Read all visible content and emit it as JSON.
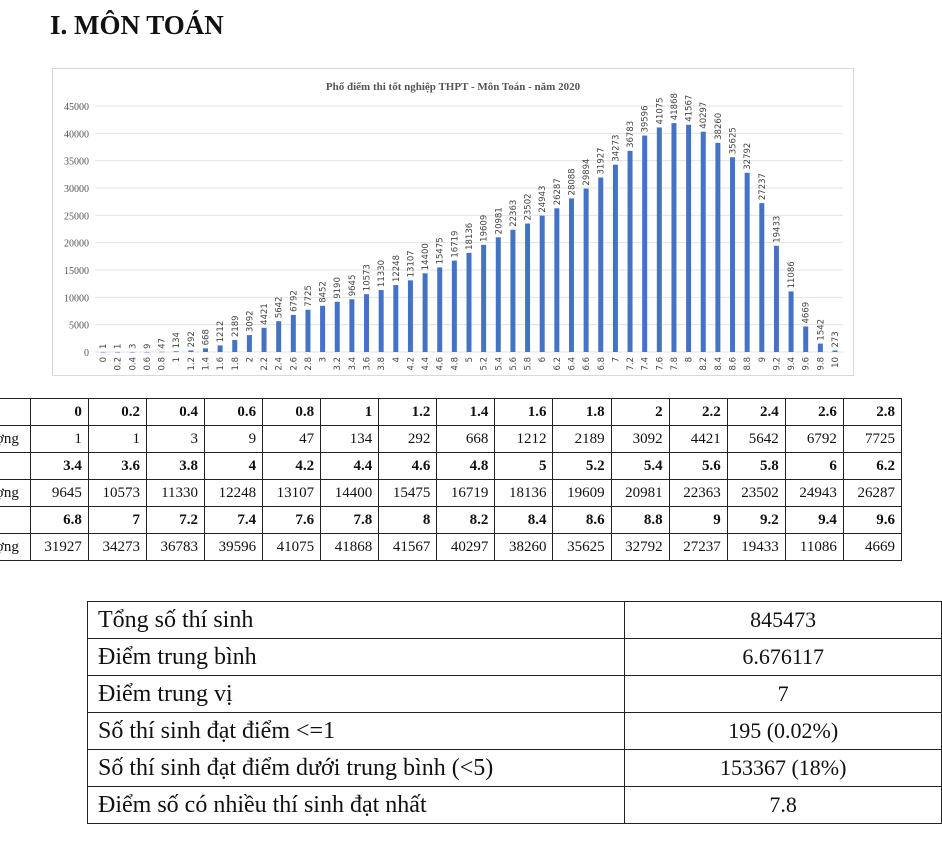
{
  "heading": "I. MÔN TOÁN",
  "chart_data": {
    "type": "bar",
    "title": "Phổ điểm thi tốt nghiệp THPT - Môn Toán - năm 2020",
    "xlabel": "",
    "ylabel": "",
    "ylim": [
      0,
      45000
    ],
    "yticks": [
      0,
      5000,
      10000,
      15000,
      20000,
      25000,
      30000,
      35000,
      40000,
      45000
    ],
    "grid": true,
    "bar_color": "#4472c4",
    "categories": [
      "0",
      "0.2",
      "0.4",
      "0.6",
      "0.8",
      "1",
      "1.2",
      "1.4",
      "1.6",
      "1.8",
      "2",
      "2.2",
      "2.4",
      "2.6",
      "2.8",
      "3",
      "3.2",
      "3.4",
      "3.6",
      "3.8",
      "4",
      "4.2",
      "4.4",
      "4.6",
      "4.8",
      "5",
      "5.2",
      "5.4",
      "5.6",
      "5.8",
      "6",
      "6.2",
      "6.4",
      "6.6",
      "6.8",
      "7",
      "7.2",
      "7.4",
      "7.6",
      "7.8",
      "8",
      "8.2",
      "8.4",
      "8.6",
      "8.8",
      "9",
      "9.2",
      "9.4",
      "9.6",
      "9.8",
      "10"
    ],
    "values": [
      1,
      1,
      3,
      9,
      47,
      134,
      292,
      668,
      1212,
      2189,
      3092,
      4421,
      5642,
      6792,
      7725,
      8452,
      9190,
      9645,
      10573,
      11330,
      12248,
      13107,
      14400,
      15475,
      16719,
      18136,
      19609,
      20981,
      22363,
      23502,
      24943,
      26287,
      28088,
      29894,
      31927,
      34273,
      36783,
      39596,
      41075,
      41868,
      41567,
      40297,
      38260,
      35625,
      32792,
      27237,
      19433,
      11086,
      4669,
      1542,
      273
    ]
  },
  "distribution_table": {
    "row_label": "Số lượng",
    "blocks": [
      {
        "scores": [
          "0",
          "0.2",
          "0.4",
          "0.6",
          "0.8",
          "1",
          "1.2",
          "1.4",
          "1.6",
          "1.8",
          "2",
          "2.2",
          "2.4",
          "2.6",
          "2.8"
        ],
        "counts": [
          "1",
          "1",
          "3",
          "9",
          "47",
          "134",
          "292",
          "668",
          "1212",
          "2189",
          "3092",
          "4421",
          "5642",
          "6792",
          "7725"
        ]
      },
      {
        "scores": [
          "3.4",
          "3.6",
          "3.8",
          "4",
          "4.2",
          "4.4",
          "4.6",
          "4.8",
          "5",
          "5.2",
          "5.4",
          "5.6",
          "5.8",
          "6",
          "6.2"
        ],
        "counts": [
          "9645",
          "10573",
          "11330",
          "12248",
          "13107",
          "14400",
          "15475",
          "16719",
          "18136",
          "19609",
          "20981",
          "22363",
          "23502",
          "24943",
          "26287"
        ]
      },
      {
        "scores": [
          "6.8",
          "7",
          "7.2",
          "7.4",
          "7.6",
          "7.8",
          "8",
          "8.2",
          "8.4",
          "8.6",
          "8.8",
          "9",
          "9.2",
          "9.4",
          "9.6"
        ],
        "counts": [
          "31927",
          "34273",
          "36783",
          "39596",
          "41075",
          "41868",
          "41567",
          "40297",
          "38260",
          "35625",
          "32792",
          "27237",
          "19433",
          "11086",
          "4669"
        ]
      }
    ]
  },
  "summary": [
    {
      "label": "Tổng số thí sinh",
      "value": "845473"
    },
    {
      "label": "Điểm trung bình",
      "value": "6.676117"
    },
    {
      "label": "Điểm trung vị",
      "value": "7"
    },
    {
      "label": "Số thí sinh đạt điểm <=1",
      "value": "195 (0.02%)"
    },
    {
      "label": "Số thí sinh đạt điểm dưới trung bình (<5)",
      "value": "153367 (18%)"
    },
    {
      "label": "Điểm số có nhiều thí sinh đạt nhất",
      "value": "7.8"
    }
  ]
}
